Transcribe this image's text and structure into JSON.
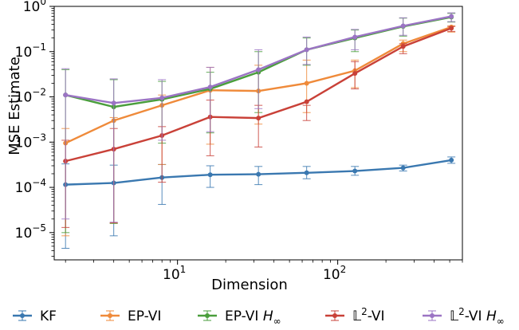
{
  "chart_data": {
    "type": "line",
    "xlabel": "Dimension",
    "ylabel": "MSE Estimate",
    "xscale": "log",
    "yscale": "log",
    "xlim": [
      1.7,
      600
    ],
    "ylim": [
      2.5e-06,
      1
    ],
    "x": [
      2,
      4,
      8,
      16,
      32,
      64,
      128,
      256,
      512
    ],
    "x_tick_labels": [
      {
        "value": 10,
        "base": "10",
        "exp": "1"
      },
      {
        "value": 100,
        "base": "10",
        "exp": "2"
      }
    ],
    "y_tick_labels": [
      {
        "value": 1e-05,
        "base": "10",
        "exp": "−5"
      },
      {
        "value": 0.0001,
        "base": "10",
        "exp": "−4"
      },
      {
        "value": 0.001,
        "base": "10",
        "exp": "−3"
      },
      {
        "value": 0.01,
        "base": "10",
        "exp": "−2"
      },
      {
        "value": 0.1,
        "base": "10",
        "exp": "−1"
      },
      {
        "value": 1,
        "base": "10",
        "exp": "0"
      }
    ],
    "legend_position": "bottom",
    "grid": false,
    "series": [
      {
        "name": "KF",
        "color": "#3a78b0",
        "values": [
          0.000115,
          0.000125,
          0.000165,
          0.00019,
          0.000195,
          0.00021,
          0.00023,
          0.00027,
          0.0004
        ],
        "lower": [
          4.5e-06,
          8.5e-06,
          4.2e-05,
          0.0001,
          0.000115,
          0.000155,
          0.000185,
          0.00023,
          0.00034
        ],
        "upper": [
          0.00033,
          0.00031,
          0.00032,
          0.0003,
          0.00029,
          0.00029,
          0.00029,
          0.00031,
          0.00047
        ]
      },
      {
        "name": "EP-VI",
        "color": "#ef8a3a",
        "values": [
          0.00095,
          0.003,
          0.0065,
          0.014,
          0.0135,
          0.02,
          0.038,
          0.15,
          0.35
        ],
        "lower": [
          8.5e-06,
          1.6e-05,
          0.00032,
          0.0009,
          0.0025,
          0.0045,
          0.016,
          0.1,
          0.27
        ],
        "upper": [
          0.002,
          0.0035,
          0.011,
          0.045,
          0.05,
          0.065,
          0.065,
          0.18,
          0.37
        ]
      },
      {
        "name": "EP-VI H∞",
        "label_base": "EP-VI ",
        "label_math": "H",
        "label_sub": "∞",
        "color": "#4a9e3c",
        "values": [
          0.011,
          0.006,
          0.0088,
          0.015,
          0.035,
          0.11,
          0.2,
          0.36,
          0.58
        ],
        "lower": [
          1e-05,
          1.6e-05,
          0.00095,
          0.0016,
          0.0045,
          0.05,
          0.1,
          0.22,
          0.45
        ],
        "upper": [
          0.04,
          0.024,
          0.022,
          0.035,
          0.1,
          0.2,
          0.3,
          0.55,
          0.7
        ]
      },
      {
        "name": "𝕃2-VI",
        "label_base": "𝕃",
        "label_sup": "2",
        "label_rest": "-VI",
        "color": "#c94138",
        "values": [
          0.00038,
          0.0007,
          0.0014,
          0.0036,
          0.0034,
          0.0078,
          0.033,
          0.13,
          0.33
        ],
        "lower": [
          1.3e-05,
          1.65e-05,
          0.00013,
          0.0005,
          0.00078,
          0.003,
          0.015,
          0.09,
          0.28
        ],
        "upper": [
          0.0011,
          0.002,
          0.0022,
          0.0085,
          0.0065,
          0.0065,
          0.06,
          0.15,
          0.36
        ]
      },
      {
        "name": "𝕃2-VI H∞",
        "label_base": "𝕃",
        "label_sup": "2",
        "label_rest": "-VI ",
        "label_math": "H",
        "label_sub": "∞",
        "color": "#9b74c4",
        "values": [
          0.011,
          0.0073,
          0.0095,
          0.0165,
          0.04,
          0.11,
          0.21,
          0.37,
          0.6
        ],
        "lower": [
          2e-05,
          1.7e-05,
          0.0011,
          0.0017,
          0.0055,
          0.052,
          0.11,
          0.23,
          0.46
        ],
        "upper": [
          0.042,
          0.025,
          0.024,
          0.045,
          0.11,
          0.21,
          0.31,
          0.56,
          0.72
        ]
      }
    ]
  }
}
